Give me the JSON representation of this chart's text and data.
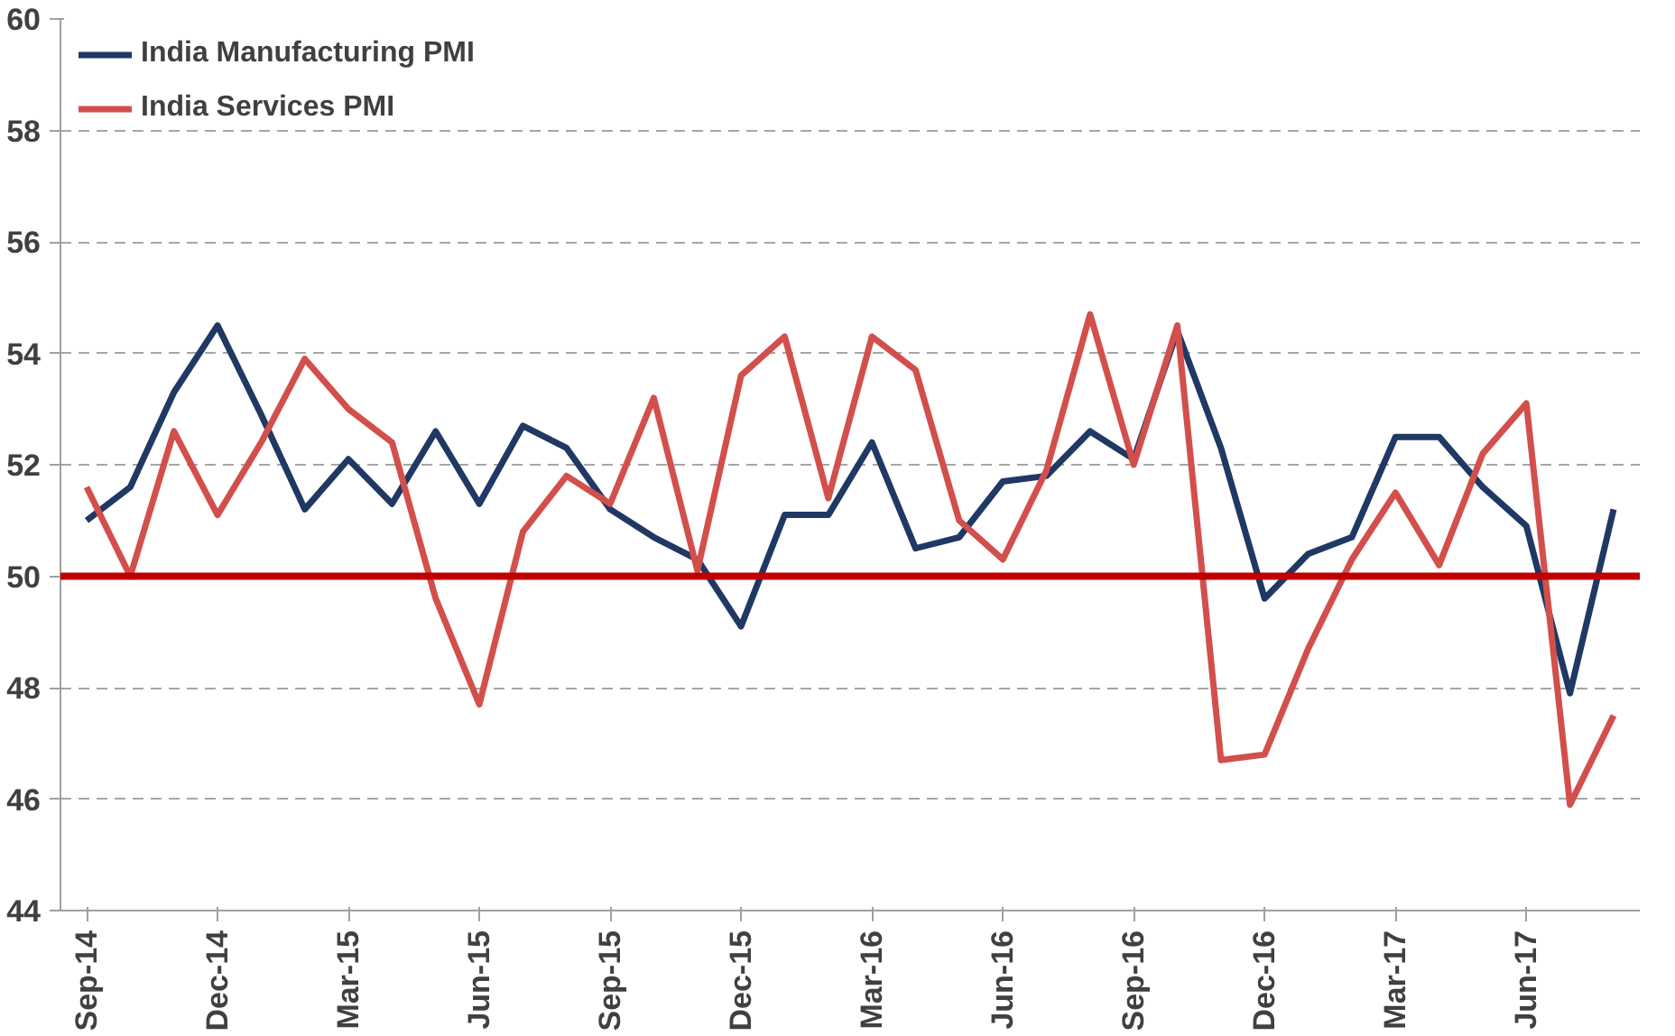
{
  "chart_data": {
    "type": "line",
    "categories": [
      "Sep-14",
      null,
      null,
      "Dec-14",
      null,
      null,
      "Mar-15",
      null,
      null,
      "Jun-15",
      null,
      null,
      "Sep-15",
      null,
      null,
      "Dec-15",
      null,
      null,
      "Mar-16",
      null,
      null,
      "Jun-16",
      null,
      null,
      "Sep-16",
      null,
      null,
      "Dec-16",
      null,
      null,
      "Mar-17",
      null,
      null,
      "Jun-17",
      null,
      null
    ],
    "series": [
      {
        "name": "India Manufacturing PMI",
        "color": "#1f3864",
        "values": [
          51.0,
          51.6,
          53.3,
          54.5,
          52.9,
          51.2,
          52.1,
          51.3,
          52.6,
          51.3,
          52.7,
          52.3,
          51.2,
          50.7,
          50.3,
          49.1,
          51.1,
          51.1,
          52.4,
          50.5,
          50.7,
          51.7,
          51.8,
          52.6,
          52.1,
          54.4,
          52.3,
          49.6,
          50.4,
          50.7,
          52.5,
          52.5,
          51.6,
          50.9,
          47.9,
          51.2
        ]
      },
      {
        "name": "India Services PMI",
        "color": "#d24f4c",
        "values": [
          51.6,
          50.0,
          52.6,
          51.1,
          52.4,
          53.9,
          53.0,
          52.4,
          49.6,
          47.7,
          50.8,
          51.8,
          51.3,
          53.2,
          50.1,
          53.6,
          54.3,
          51.4,
          54.3,
          53.7,
          51.0,
          50.3,
          51.9,
          54.7,
          52.0,
          54.5,
          46.7,
          46.8,
          48.7,
          50.3,
          51.5,
          50.2,
          52.2,
          53.1,
          45.9,
          47.5
        ]
      }
    ],
    "ylim": [
      44,
      60
    ],
    "yticks": [
      44,
      46,
      48,
      50,
      52,
      54,
      56,
      58,
      60
    ],
    "ref_lines": [
      {
        "axis": "y",
        "value": 50,
        "color": "#c00000"
      }
    ],
    "grid": "y",
    "legend": "top left",
    "line_style": "solid"
  }
}
